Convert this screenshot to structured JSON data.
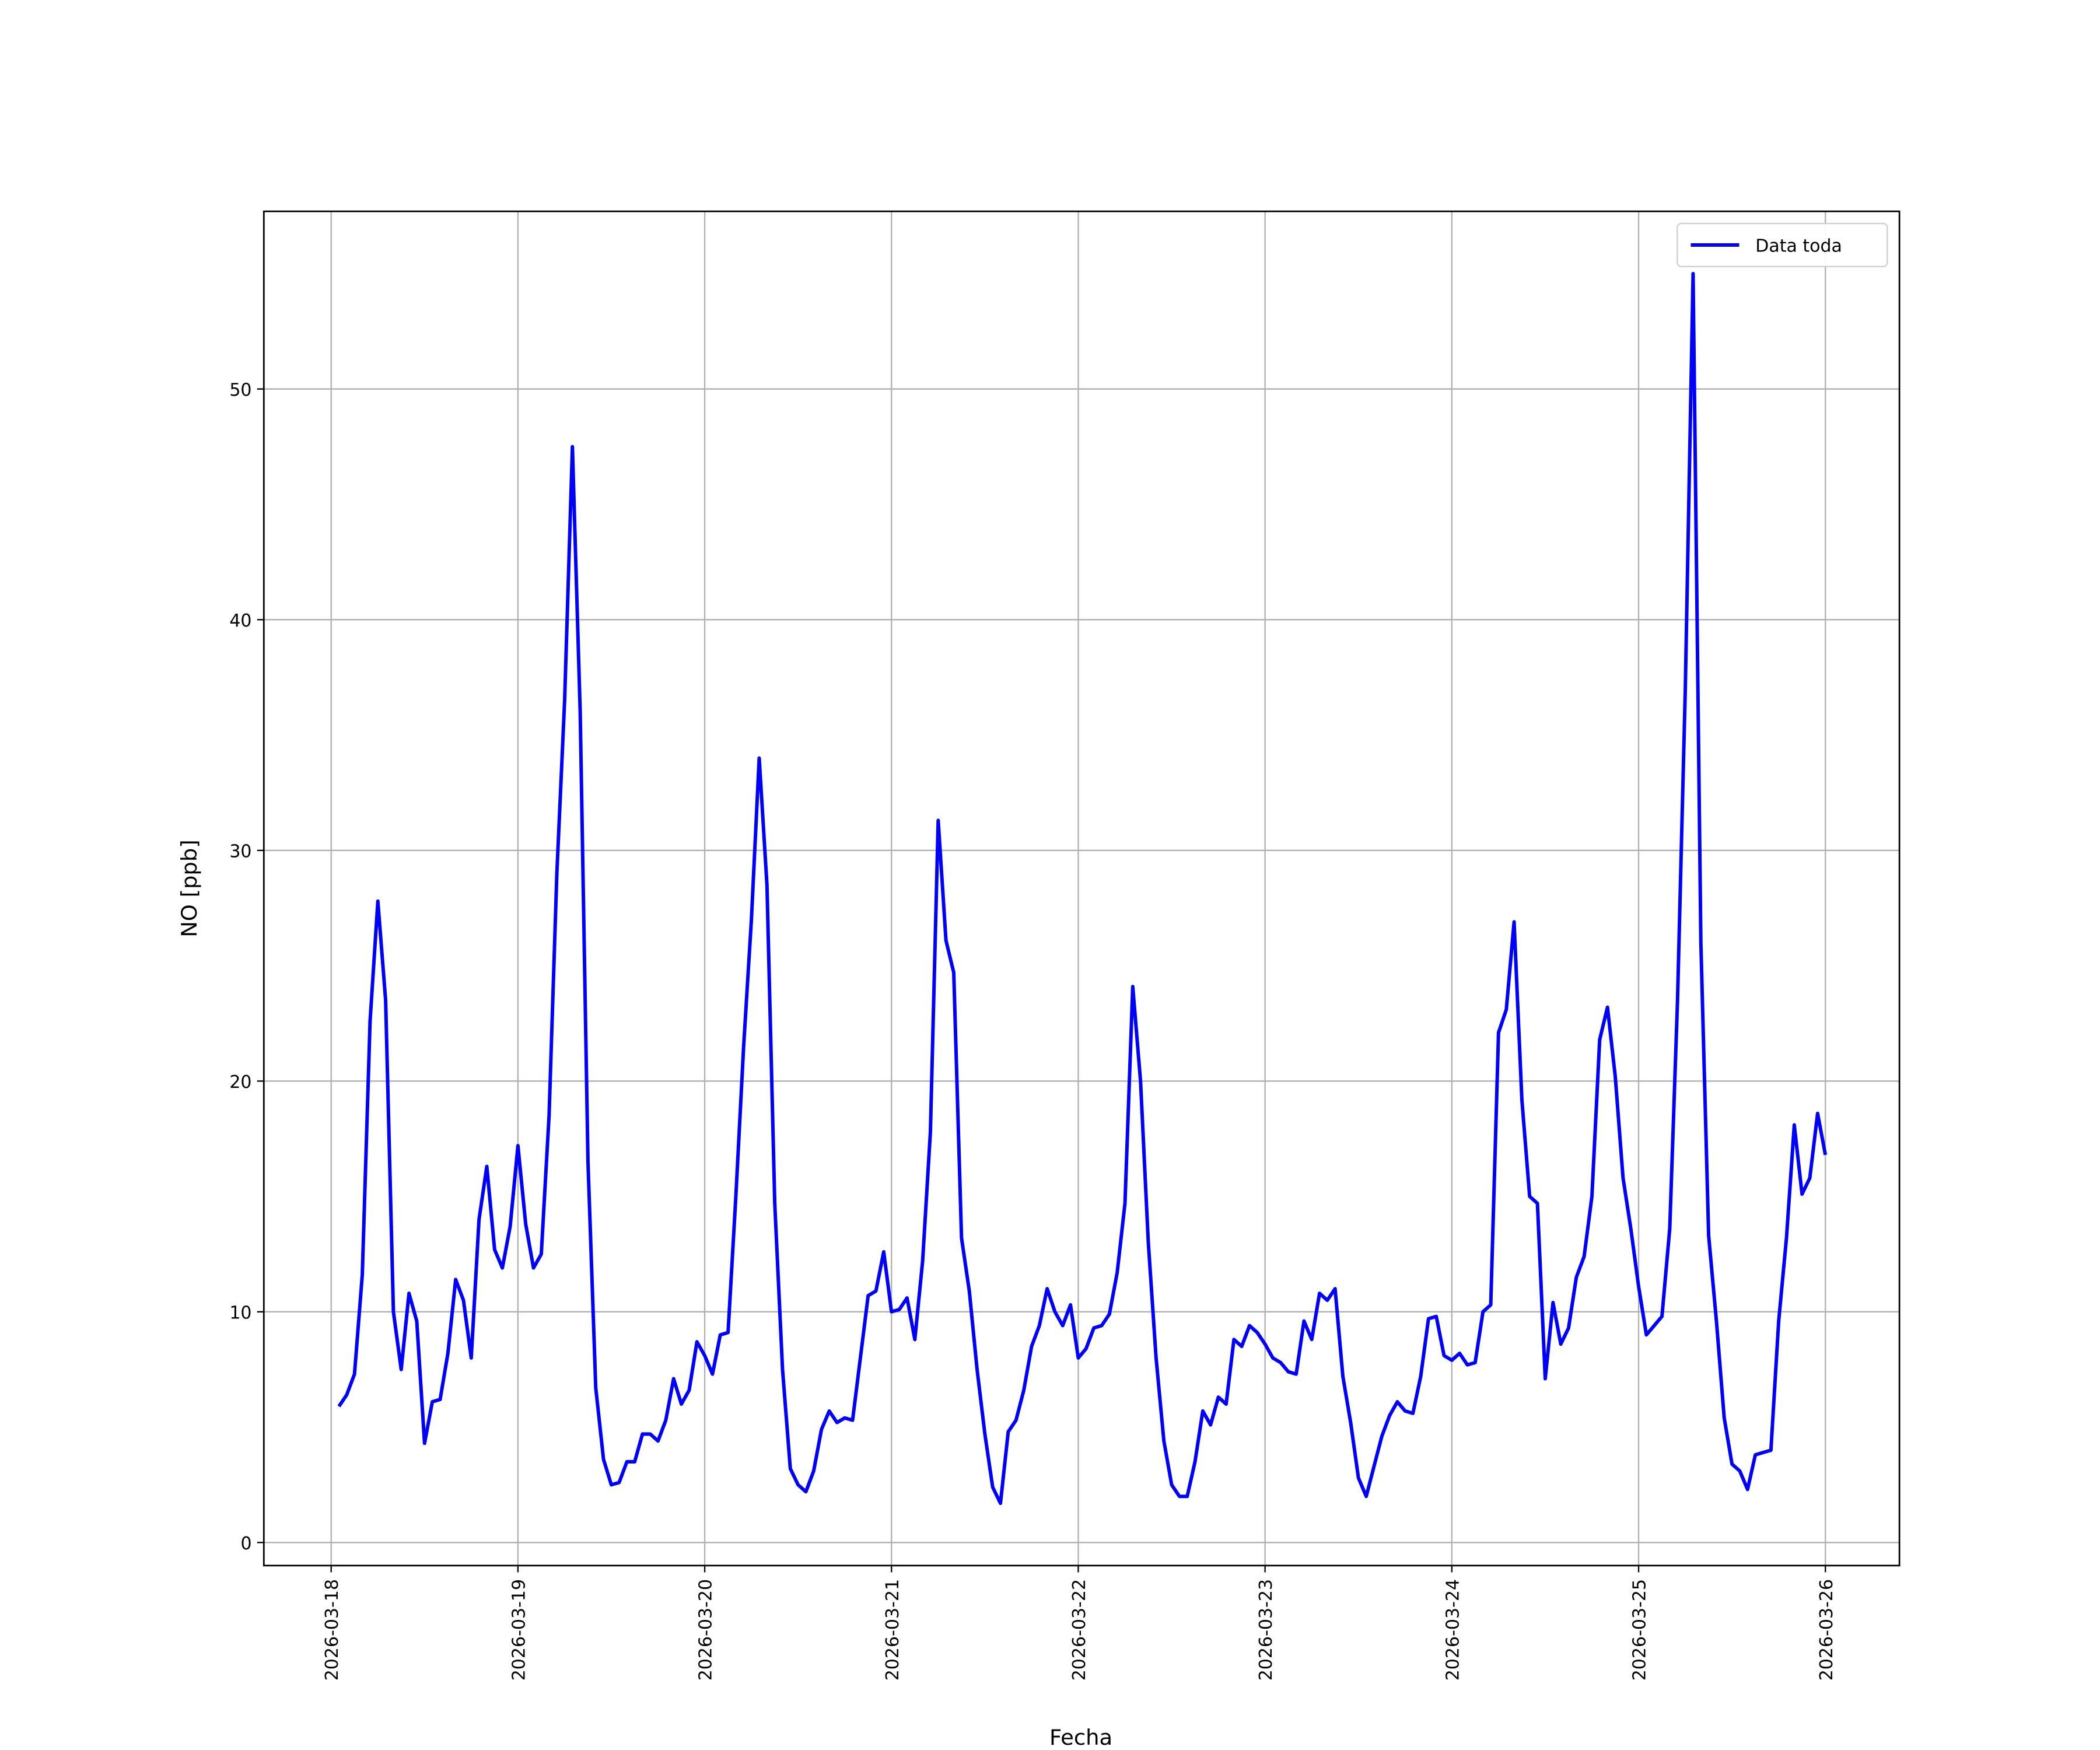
{
  "chart_data": {
    "type": "line",
    "xlabel": "Fecha",
    "ylabel": "NO [ppb]",
    "xticks": [
      "2026-03-18",
      "2026-03-19",
      "2026-03-20",
      "2026-03-21",
      "2026-03-22",
      "2026-03-23",
      "2026-03-24",
      "2026-03-25",
      "2026-03-26"
    ],
    "ylim": [
      -1.0,
      57.7
    ],
    "yticks": [
      0,
      10,
      20,
      30,
      40,
      50
    ],
    "grid": true,
    "legend": "upper right",
    "series": [
      {
        "name": "Data toda",
        "color": "#0000ff",
        "values": [
          5.9,
          6.4,
          7.3,
          11.6,
          22.6,
          27.8,
          23.5,
          10.0,
          7.5,
          10.8,
          9.6,
          4.3,
          6.1,
          6.2,
          8.2,
          11.4,
          10.5,
          8.0,
          14.0,
          16.3,
          12.7,
          11.9,
          13.7,
          17.2,
          13.8,
          11.9,
          12.5,
          18.5,
          29.0,
          36.5,
          47.5,
          36.0,
          16.5,
          6.7,
          3.6,
          2.5,
          2.6,
          3.5,
          3.5,
          4.7,
          4.7,
          4.4,
          5.3,
          7.1,
          6.0,
          6.6,
          8.7,
          8.1,
          7.3,
          9.0,
          9.1,
          15.0,
          21.5,
          27.0,
          34.0,
          28.5,
          14.7,
          7.5,
          3.2,
          2.5,
          2.2,
          3.1,
          4.9,
          5.7,
          5.2,
          5.4,
          5.3,
          8.0,
          10.7,
          10.9,
          12.6,
          10.0,
          10.1,
          10.6,
          8.8,
          12.2,
          17.8,
          31.3,
          26.1,
          24.7,
          13.2,
          10.9,
          7.5,
          4.7,
          2.4,
          1.7,
          4.8,
          5.3,
          6.6,
          8.5,
          9.4,
          11.0,
          10.0,
          9.4,
          10.3,
          8.0,
          8.4,
          9.3,
          9.4,
          9.9,
          11.7,
          14.7,
          24.1,
          20.0,
          13.0,
          8.0,
          4.4,
          2.5,
          2.0,
          2.0,
          3.5,
          5.7,
          5.1,
          6.3,
          6.0,
          8.8,
          8.5,
          9.4,
          9.1,
          8.6,
          8.0,
          7.8,
          7.4,
          7.3,
          9.6,
          8.8,
          10.8,
          10.5,
          11.0,
          7.2,
          5.2,
          2.8,
          2.0,
          3.3,
          4.6,
          5.5,
          6.1,
          5.7,
          5.6,
          7.2,
          9.7,
          9.8,
          8.1,
          7.9,
          8.2,
          7.7,
          7.8,
          10.0,
          10.3,
          22.1,
          23.1,
          26.9,
          19.2,
          15.0,
          14.7,
          7.1,
          10.4,
          8.6,
          9.3,
          11.5,
          12.4,
          15.0,
          21.8,
          23.2,
          20.2,
          15.8,
          13.6,
          11.1,
          9.0,
          9.4,
          9.8,
          13.6,
          23.5,
          37.0,
          55.0,
          26.0,
          13.3,
          9.6,
          5.4,
          3.4,
          3.1,
          2.3,
          3.8,
          3.9,
          4.0,
          9.6,
          13.2,
          18.1,
          15.1,
          15.8,
          18.6,
          16.8
        ]
      }
    ]
  }
}
